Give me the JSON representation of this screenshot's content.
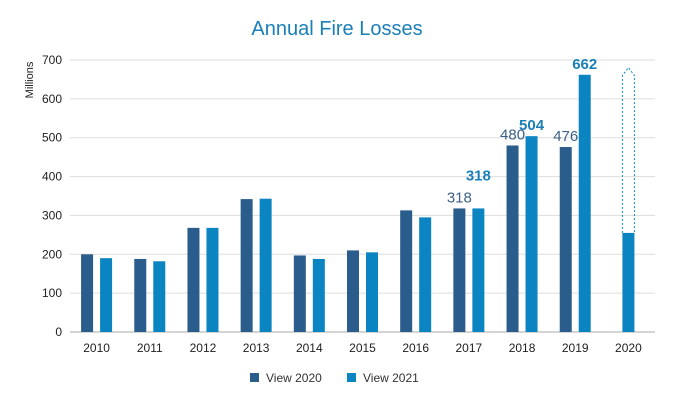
{
  "chart_data": {
    "type": "bar",
    "title": "Annual Fire Losses",
    "ylabel": "Millions",
    "xlabel": "",
    "ylim": [
      0,
      700
    ],
    "yticks": [
      0,
      100,
      200,
      300,
      400,
      500,
      600,
      700
    ],
    "grid": true,
    "legend_position": "bottom",
    "categories": [
      "2010",
      "2011",
      "2012",
      "2013",
      "2014",
      "2015",
      "2016",
      "2017",
      "2018",
      "2019",
      "2020"
    ],
    "series": [
      {
        "name": "View 2020",
        "color": "#2a5c8c",
        "values": [
          200,
          188,
          268,
          342,
          197,
          210,
          313,
          318,
          480,
          476,
          null
        ],
        "data_labels": {
          "7": "318",
          "8": "480",
          "9": "476"
        }
      },
      {
        "name": "View 2021",
        "color": "#0b84c2",
        "values": [
          190,
          182,
          268,
          343,
          188,
          205,
          295,
          318,
          504,
          662,
          255
        ],
        "data_labels": {
          "7": "318",
          "8": "504",
          "9": "662"
        }
      }
    ],
    "projection": {
      "category": "2020",
      "series": "View 2021",
      "value": 660,
      "style": "dashed-outline-arrow"
    },
    "colors": {
      "title": "#1a7fb8",
      "grid": "#dddddd",
      "axis": "#aaaaaa",
      "old_label": "#3b5f86",
      "new_label": "#1a7fb8"
    }
  }
}
